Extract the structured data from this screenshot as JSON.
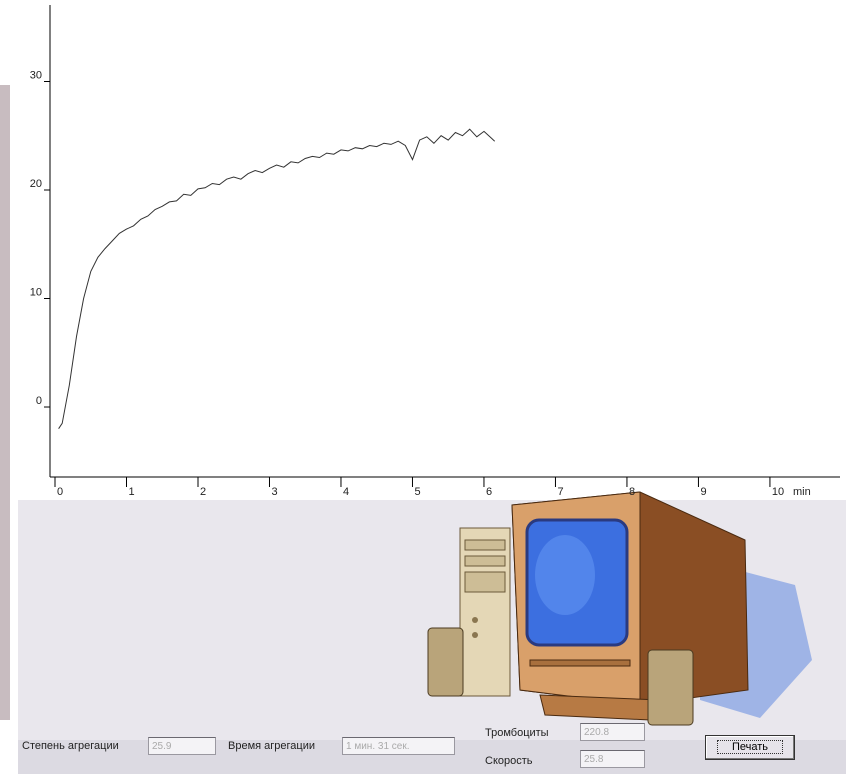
{
  "chart_data": {
    "type": "line",
    "x": [
      0.05,
      0.1,
      0.2,
      0.3,
      0.4,
      0.5,
      0.6,
      0.7,
      0.8,
      0.9,
      1.0,
      1.1,
      1.2,
      1.3,
      1.4,
      1.5,
      1.6,
      1.7,
      1.8,
      1.9,
      2.0,
      2.1,
      2.2,
      2.3,
      2.4,
      2.5,
      2.6,
      2.7,
      2.8,
      2.9,
      3.0,
      3.1,
      3.2,
      3.3,
      3.4,
      3.5,
      3.6,
      3.7,
      3.8,
      3.9,
      4.0,
      4.1,
      4.2,
      4.3,
      4.4,
      4.5,
      4.6,
      4.7,
      4.8,
      4.9,
      5.0,
      5.1,
      5.2,
      5.3,
      5.4,
      5.5,
      5.6,
      5.7,
      5.8,
      5.9,
      6.0,
      6.1,
      6.15
    ],
    "values": [
      -2.0,
      -1.5,
      2.0,
      6.5,
      10.0,
      12.5,
      13.8,
      14.6,
      15.3,
      16.0,
      16.4,
      16.7,
      17.3,
      17.6,
      18.2,
      18.5,
      18.9,
      19.0,
      19.6,
      19.5,
      20.1,
      20.2,
      20.6,
      20.5,
      21.0,
      21.2,
      21.0,
      21.5,
      21.8,
      21.6,
      22.0,
      22.3,
      22.1,
      22.6,
      22.5,
      22.9,
      23.1,
      23.0,
      23.4,
      23.3,
      23.7,
      23.6,
      23.9,
      23.8,
      24.1,
      24.0,
      24.3,
      24.2,
      24.5,
      24.1,
      22.8,
      24.6,
      24.9,
      24.3,
      25.0,
      24.6,
      25.3,
      25.0,
      25.6,
      24.9,
      25.4,
      24.8,
      24.5
    ],
    "color": "#333333",
    "xlim": [
      -0.07,
      10.98
    ],
    "ylim": [
      -6.45,
      37.05
    ],
    "xticks": [
      0,
      1,
      2,
      3,
      4,
      5,
      6,
      7,
      8,
      9,
      10
    ],
    "yticks": [
      0,
      10,
      20,
      30
    ],
    "x_label": "min"
  },
  "form": {
    "fields": [
      {
        "label": "Степень агрегации",
        "value": "25.9"
      },
      {
        "label": "Время агрегации",
        "value": "1 мин. 31 сек."
      },
      {
        "label": "Тромбоциты",
        "value": "220.8"
      },
      {
        "label": "Скорость",
        "value": "25.8"
      }
    ],
    "button": "Печать"
  }
}
